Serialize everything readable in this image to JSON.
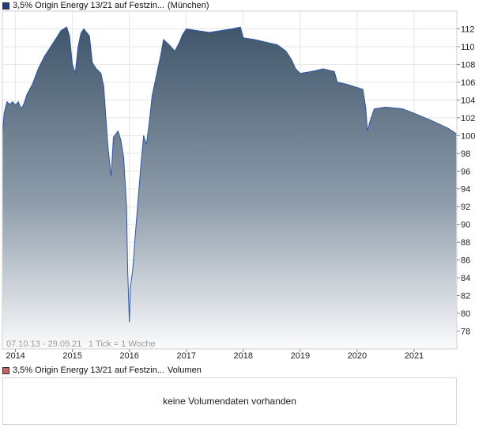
{
  "legend_price": {
    "label": "3,5% Origin Energy 13/21 auf Festzin...",
    "exchange": "(München)",
    "color": "#1f3d7a"
  },
  "legend_volume": {
    "label": "3,5% Origin Energy 13/21 auf Festzin...",
    "suffix": "Volumen",
    "color": "#c86464"
  },
  "info": {
    "range": "07.10.13 - 29.09.21",
    "tick": "1 Tick = 1 Woche"
  },
  "volume_message": "keine Volumendaten vorhanden",
  "chart_data": {
    "type": "area",
    "title": "",
    "xlabel": "",
    "ylabel": "",
    "x_range": [
      2013.77,
      2021.75
    ],
    "ylim": [
      76,
      114
    ],
    "y_ticks": [
      78,
      80,
      82,
      84,
      86,
      88,
      90,
      92,
      94,
      96,
      98,
      100,
      102,
      104,
      106,
      108,
      110,
      112
    ],
    "x_ticks": [
      {
        "label": "2014",
        "x": 2014.0
      },
      {
        "label": "2015",
        "x": 2015.0
      },
      {
        "label": "2016",
        "x": 2016.0
      },
      {
        "label": "2017",
        "x": 2017.0
      },
      {
        "label": "2018",
        "x": 2018.0
      },
      {
        "label": "2019",
        "x": 2019.0
      },
      {
        "label": "2020",
        "x": 2020.0
      },
      {
        "label": "2021",
        "x": 2021.0
      }
    ],
    "grid": true,
    "series": [
      {
        "values": [
          [
            2013.77,
            100.0
          ],
          [
            2013.8,
            102.5
          ],
          [
            2013.85,
            103.8
          ],
          [
            2013.9,
            103.5
          ],
          [
            2013.95,
            103.8
          ],
          [
            2014.0,
            103.4
          ],
          [
            2014.05,
            103.8
          ],
          [
            2014.1,
            103.0
          ],
          [
            2014.15,
            103.6
          ],
          [
            2014.2,
            104.6
          ],
          [
            2014.3,
            105.8
          ],
          [
            2014.4,
            107.5
          ],
          [
            2014.5,
            108.8
          ],
          [
            2014.6,
            109.8
          ],
          [
            2014.7,
            110.8
          ],
          [
            2014.8,
            111.8
          ],
          [
            2014.9,
            112.2
          ],
          [
            2014.95,
            111.2
          ],
          [
            2015.0,
            108.0
          ],
          [
            2015.05,
            107.0
          ],
          [
            2015.1,
            110.0
          ],
          [
            2015.15,
            111.5
          ],
          [
            2015.2,
            112.0
          ],
          [
            2015.3,
            111.2
          ],
          [
            2015.35,
            108.2
          ],
          [
            2015.42,
            107.5
          ],
          [
            2015.5,
            107.0
          ],
          [
            2015.55,
            105.5
          ],
          [
            2015.62,
            99.0
          ],
          [
            2015.68,
            95.4
          ],
          [
            2015.72,
            99.8
          ],
          [
            2015.8,
            100.5
          ],
          [
            2015.85,
            99.5
          ],
          [
            2015.9,
            97.5
          ],
          [
            2015.95,
            92.0
          ],
          [
            2015.97,
            85.0
          ],
          [
            2016.0,
            79.0
          ],
          [
            2016.02,
            83.0
          ],
          [
            2016.06,
            85.0
          ],
          [
            2016.1,
            88.5
          ],
          [
            2016.15,
            92.5
          ],
          [
            2016.2,
            96.5
          ],
          [
            2016.25,
            100.0
          ],
          [
            2016.3,
            99.0
          ],
          [
            2016.35,
            101.5
          ],
          [
            2016.4,
            104.5
          ],
          [
            2016.5,
            107.5
          ],
          [
            2016.55,
            109.0
          ],
          [
            2016.6,
            110.8
          ],
          [
            2016.7,
            110.2
          ],
          [
            2016.8,
            109.5
          ],
          [
            2016.88,
            110.5
          ],
          [
            2016.93,
            111.3
          ],
          [
            2017.0,
            112.0
          ],
          [
            2017.2,
            111.8
          ],
          [
            2017.4,
            111.6
          ],
          [
            2017.6,
            111.8
          ],
          [
            2017.8,
            112.0
          ],
          [
            2017.95,
            112.2
          ],
          [
            2018.0,
            111.0
          ],
          [
            2018.2,
            110.8
          ],
          [
            2018.4,
            110.5
          ],
          [
            2018.6,
            110.2
          ],
          [
            2018.75,
            109.5
          ],
          [
            2018.85,
            108.5
          ],
          [
            2018.92,
            107.5
          ],
          [
            2019.0,
            107.0
          ],
          [
            2019.2,
            107.2
          ],
          [
            2019.4,
            107.5
          ],
          [
            2019.6,
            107.2
          ],
          [
            2019.65,
            106.0
          ],
          [
            2019.8,
            105.8
          ],
          [
            2020.0,
            105.4
          ],
          [
            2020.1,
            105.2
          ],
          [
            2020.15,
            103.2
          ],
          [
            2020.18,
            100.5
          ],
          [
            2020.22,
            101.5
          ],
          [
            2020.3,
            103.0
          ],
          [
            2020.5,
            103.2
          ],
          [
            2020.8,
            103.0
          ],
          [
            2021.0,
            102.5
          ],
          [
            2021.3,
            101.7
          ],
          [
            2021.6,
            100.8
          ],
          [
            2021.74,
            100.2
          ]
        ]
      }
    ]
  }
}
